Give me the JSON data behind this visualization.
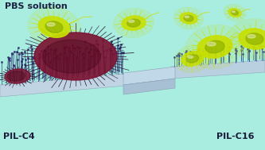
{
  "bg_color": "#a8ede0",
  "title_text": "PBS solution",
  "label_left": "PIL-C4",
  "label_right": "PIL-C16",
  "title_fontsize": 8,
  "label_fontsize": 8,
  "figsize": [
    3.33,
    1.89
  ],
  "dpi": 100,
  "surface_left_color": "#c0d4e4",
  "surface_right_color": "#b8d0e0",
  "surface_edge_color": "#90a8bc",
  "brush_tall_color": "#2a3070",
  "brush_short_color": "#2a4090",
  "bacterium_dead_color": "#7a1030",
  "bacterium_dead_spike": "#4a0820",
  "bacterium_live_color": "#c8e000",
  "bacterium_live_dark": "#88aa00",
  "ramp_color": "#b0c8d8",
  "ramp_face": "#a8c0d4",
  "ramp_top": "#c0d8e8",
  "ramp_edge": "#88a0b4"
}
